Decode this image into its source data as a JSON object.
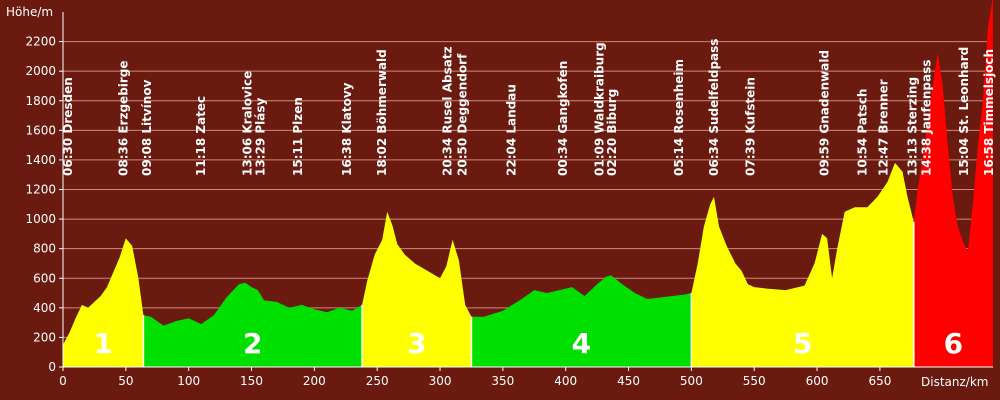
{
  "chart_data": {
    "type": "area",
    "title": "",
    "xlabel": "Distanz/km",
    "ylabel": "Höhe/m",
    "xlim": [
      0,
      740
    ],
    "ylim": [
      0,
      2400
    ],
    "x_ticks": [
      0,
      50,
      100,
      150,
      200,
      250,
      300,
      350,
      400,
      450,
      500,
      550,
      600,
      650
    ],
    "y_ticks": [
      0,
      200,
      400,
      600,
      800,
      1000,
      1200,
      1400,
      1600,
      1800,
      2000,
      2200
    ],
    "grid": true,
    "colors": {
      "background": "#6b1a10",
      "grid": "#d08878",
      "yellow": "#ffff00",
      "green": "#00e000",
      "red": "#ff0000",
      "text": "#ffffff"
    },
    "segments": [
      {
        "label": "1",
        "x_start": 0,
        "x_end": 64,
        "color": "yellow"
      },
      {
        "label": "2",
        "x_start": 64,
        "x_end": 238,
        "color": "green"
      },
      {
        "label": "3",
        "x_start": 238,
        "x_end": 325,
        "color": "yellow"
      },
      {
        "label": "4",
        "x_start": 325,
        "x_end": 500,
        "color": "green"
      },
      {
        "label": "5",
        "x_start": 500,
        "x_end": 677,
        "color": "yellow"
      },
      {
        "label": "6",
        "x_start": 677,
        "x_end": 740,
        "color": "red"
      }
    ],
    "profile": {
      "x": [
        0,
        5,
        10,
        15,
        20,
        25,
        30,
        35,
        40,
        45,
        50,
        55,
        60,
        64,
        70,
        80,
        90,
        100,
        110,
        120,
        130,
        140,
        145,
        150,
        155,
        160,
        170,
        180,
        190,
        200,
        210,
        220,
        230,
        238,
        242,
        248,
        254,
        258,
        262,
        266,
        272,
        280,
        290,
        300,
        305,
        310,
        315,
        320,
        325,
        335,
        350,
        365,
        375,
        385,
        395,
        405,
        415,
        425,
        432,
        436,
        445,
        455,
        465,
        475,
        485,
        495,
        500,
        505,
        510,
        515,
        518,
        522,
        528,
        535,
        540,
        545,
        550,
        560,
        575,
        590,
        598,
        604,
        608,
        612,
        616,
        622,
        630,
        640,
        648,
        656,
        662,
        668,
        672,
        677,
        680,
        684,
        688,
        692,
        696,
        700,
        704,
        708,
        712,
        716,
        720,
        724,
        728,
        732,
        736,
        740
      ],
      "y": [
        150,
        230,
        330,
        420,
        400,
        440,
        480,
        540,
        640,
        740,
        870,
        820,
        600,
        350,
        340,
        280,
        310,
        330,
        290,
        350,
        470,
        560,
        570,
        540,
        520,
        450,
        440,
        400,
        420,
        390,
        370,
        400,
        380,
        420,
        580,
        760,
        860,
        1050,
        960,
        830,
        760,
        700,
        650,
        600,
        680,
        860,
        720,
        420,
        340,
        340,
        380,
        460,
        520,
        500,
        520,
        540,
        480,
        560,
        610,
        620,
        560,
        500,
        460,
        470,
        480,
        490,
        500,
        700,
        950,
        1100,
        1150,
        950,
        820,
        700,
        650,
        560,
        540,
        530,
        520,
        550,
        700,
        900,
        870,
        600,
        800,
        1050,
        1080,
        1080,
        1150,
        1250,
        1380,
        1320,
        1150,
        980,
        1200,
        1400,
        1650,
        1900,
        2120,
        1900,
        1500,
        1150,
        950,
        850,
        780,
        1100,
        1500,
        1800,
        2300,
        2500
      ]
    },
    "waypoints": [
      {
        "x": 4,
        "label": "06:30 Dresden"
      },
      {
        "x": 48,
        "label": "08:36 Erzgebirge"
      },
      {
        "x": 67,
        "label": "09:08 Litvínov"
      },
      {
        "x": 110,
        "label": "11:18 Zatec"
      },
      {
        "x": 147,
        "label": "13:06 Kralovice"
      },
      {
        "x": 157,
        "label": "13:29 Plásy"
      },
      {
        "x": 187,
        "label": "15:11 Plzen"
      },
      {
        "x": 226,
        "label": "16:38 Klatovy"
      },
      {
        "x": 254,
        "label": "18:02 Böhmerwald"
      },
      {
        "x": 306,
        "label": "20:34 Rusel Absatz"
      },
      {
        "x": 318,
        "label": "20:50 Deggendorf"
      },
      {
        "x": 357,
        "label": "22:04 Landau"
      },
      {
        "x": 398,
        "label": "00:34 Gangkofen"
      },
      {
        "x": 427,
        "label": "01:09 Waldkraiburg"
      },
      {
        "x": 437,
        "label": "02:20 Biburg"
      },
      {
        "x": 490,
        "label": "05:14 Rosenheim"
      },
      {
        "x": 518,
        "label": "06:34 Sudelfeldpass"
      },
      {
        "x": 547,
        "label": "07:39 Kufstein"
      },
      {
        "x": 606,
        "label": "09:59 Gnadenwald"
      },
      {
        "x": 636,
        "label": "10:54 Patsch"
      },
      {
        "x": 653,
        "label": "12:47 Brenner"
      },
      {
        "x": 676,
        "label": "13:13 Sterzing"
      },
      {
        "x": 687,
        "label": "14:38 Jaufenpass"
      },
      {
        "x": 717,
        "label": "15:04 St. Leonhard"
      },
      {
        "x": 737,
        "label": "16:58 Timmelsjoch"
      }
    ]
  }
}
